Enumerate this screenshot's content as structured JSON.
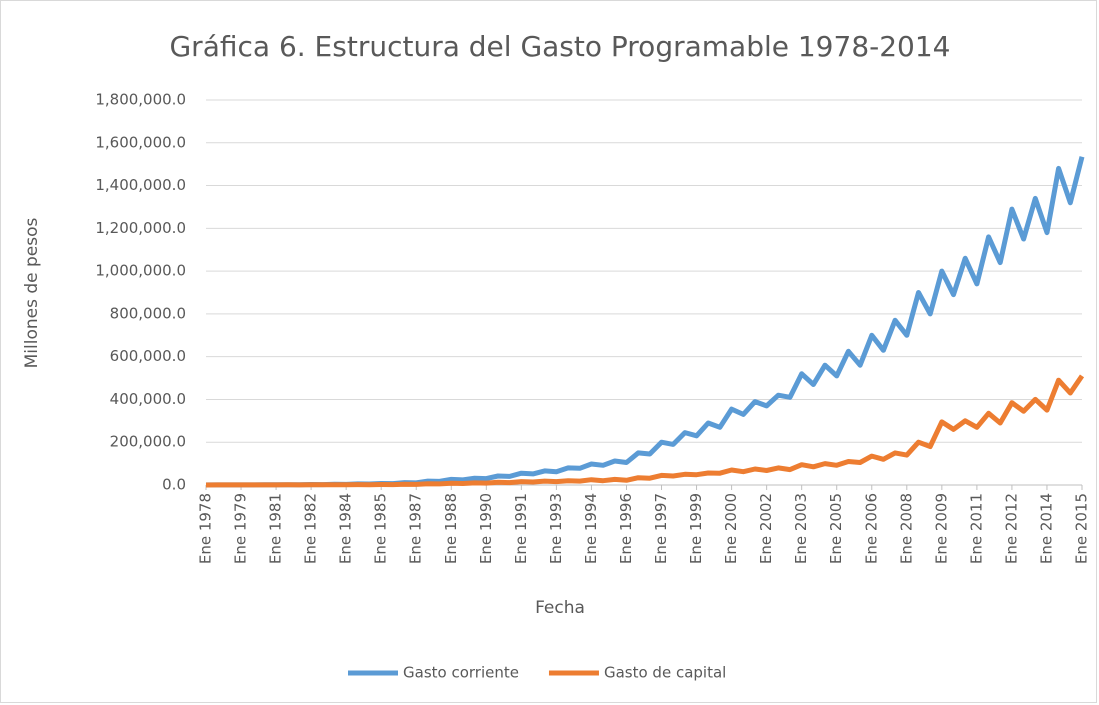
{
  "chart_data": {
    "type": "line",
    "title": "Gráfica 6. Estructura del Gasto Programable 1978-2014",
    "xlabel": "Fecha",
    "ylabel": "Millones de pesos",
    "categories": [
      "Ene 1978",
      null,
      null,
      "Ene 1979",
      null,
      null,
      "Ene 1981",
      null,
      null,
      "Ene 1982",
      null,
      null,
      "Ene 1984",
      null,
      null,
      "Ene 1985",
      null,
      null,
      "Ene 1987",
      null,
      null,
      "Ene 1988",
      null,
      null,
      "Ene 1990",
      null,
      null,
      "Ene 1991",
      null,
      null,
      "Ene 1993",
      null,
      null,
      "Ene 1994",
      null,
      null,
      "Ene 1996",
      null,
      null,
      "Ene 1997",
      null,
      null,
      "Ene 1999",
      null,
      null,
      "Ene 2000",
      null,
      null,
      "Ene 2002",
      null,
      null,
      "Ene 2003",
      null,
      null,
      "Ene 2005",
      null,
      null,
      "Ene 2006",
      null,
      null,
      "Ene 2008",
      null,
      null,
      "Ene 2009",
      null,
      null,
      "Ene 2011",
      null,
      null,
      "Ene 2012",
      null,
      null,
      "Ene 2014",
      null,
      null,
      "Ene 2015"
    ],
    "series": [
      {
        "name": "Gasto corriente",
        "color": "#5b9bd5",
        "values": [
          300,
          500,
          400,
          700,
          600,
          1000,
          900,
          1500,
          1300,
          2200,
          2000,
          3500,
          3000,
          5000,
          4500,
          7000,
          6500,
          11000,
          10000,
          18000,
          17000,
          26000,
          24000,
          32000,
          30000,
          42000,
          40000,
          55000,
          52000,
          66000,
          62000,
          80000,
          78000,
          98000,
          92000,
          112000,
          105000,
          150000,
          145000,
          200000,
          190000,
          245000,
          230000,
          290000,
          270000,
          355000,
          330000,
          390000,
          370000,
          420000,
          410000,
          520000,
          470000,
          560000,
          510000,
          625000,
          560000,
          700000,
          630000,
          770000,
          700000,
          900000,
          800000,
          1000000,
          890000,
          1060000,
          940000,
          1160000,
          1040000,
          1290000,
          1150000,
          1340000,
          1180000,
          1480000,
          1320000,
          1535000
        ]
      },
      {
        "name": "Gasto de capital",
        "color": "#ed7d31",
        "values": [
          200,
          300,
          300,
          400,
          400,
          600,
          500,
          800,
          700,
          1000,
          900,
          1400,
          1200,
          1800,
          1500,
          2500,
          2000,
          3500,
          3000,
          5500,
          5000,
          8000,
          7000,
          10000,
          9000,
          13000,
          11000,
          16000,
          14000,
          18000,
          16000,
          20000,
          18000,
          25000,
          20000,
          26000,
          22000,
          34000,
          32000,
          45000,
          42000,
          50000,
          48000,
          56000,
          55000,
          70000,
          62000,
          75000,
          68000,
          80000,
          72000,
          95000,
          85000,
          100000,
          92000,
          110000,
          105000,
          135000,
          120000,
          150000,
          140000,
          200000,
          180000,
          295000,
          260000,
          300000,
          270000,
          335000,
          290000,
          385000,
          345000,
          400000,
          350000,
          490000,
          430000,
          510000
        ]
      }
    ],
    "ylim": [
      0,
      1800000
    ],
    "yticks": [
      {
        "value": 0,
        "label": "0.0"
      },
      {
        "value": 200000,
        "label": "200,000.0"
      },
      {
        "value": 400000,
        "label": "400,000.0"
      },
      {
        "value": 600000,
        "label": "600,000.0"
      },
      {
        "value": 800000,
        "label": "800,000.0"
      },
      {
        "value": 1000000,
        "label": "1,000,000.0"
      },
      {
        "value": 1200000,
        "label": "1,200,000.0"
      },
      {
        "value": 1400000,
        "label": "1,400,000.0"
      },
      {
        "value": 1600000,
        "label": "1,600,000.0"
      },
      {
        "value": 1800000,
        "label": "1,800,000.0"
      }
    ],
    "grid": true,
    "legend": "bottom"
  }
}
